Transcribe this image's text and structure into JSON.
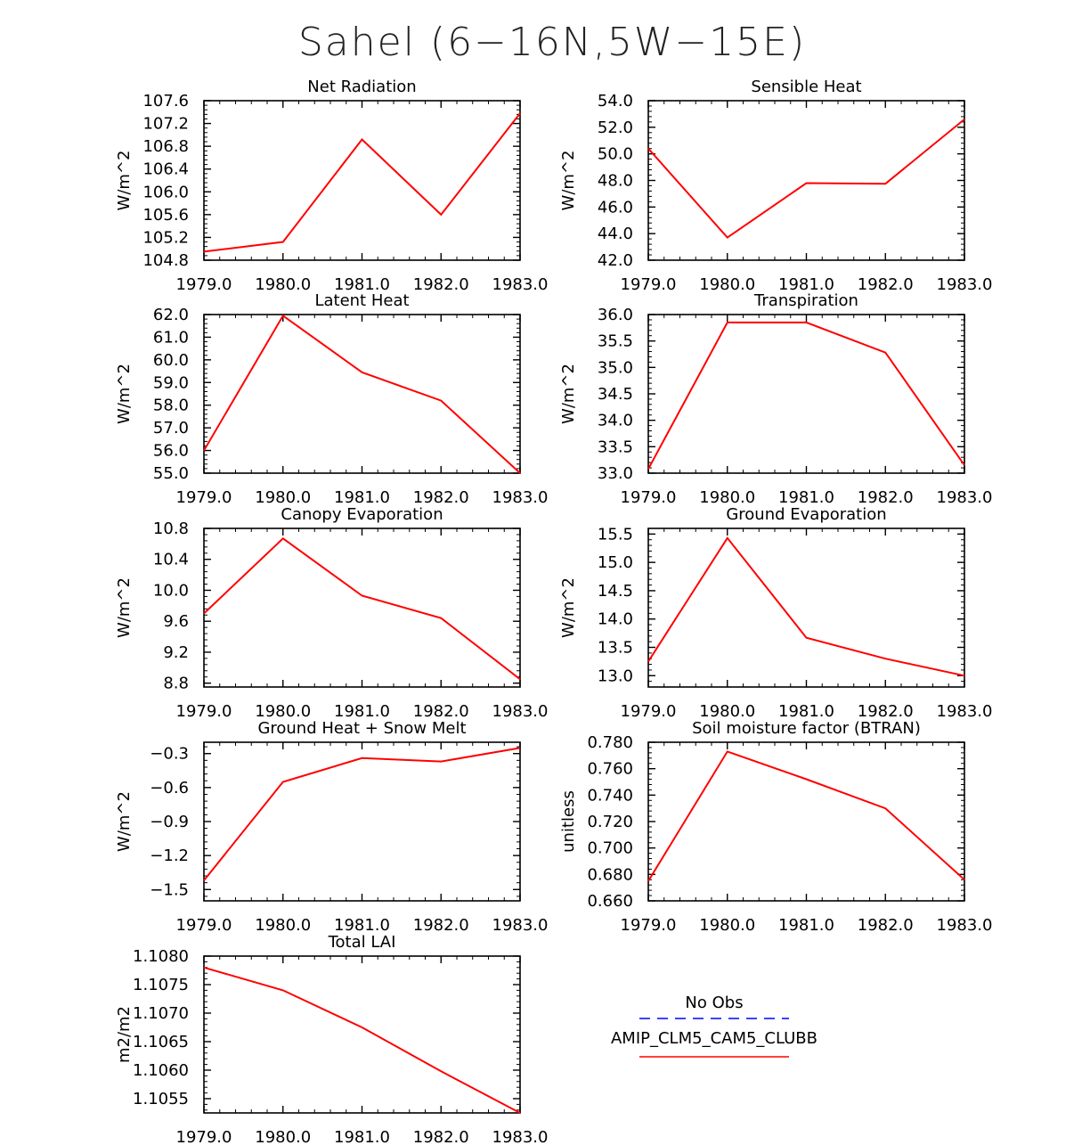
{
  "suptitle": "Sahel (6−16N,5W−15E)",
  "colors": {
    "model": "#ff0000",
    "obs": "#0000ff",
    "axis": "#000000"
  },
  "legend": {
    "obs_label": "No Obs",
    "model_label": "AMIP_CLM5_CAM5_CLUBB"
  },
  "chart_data": [
    {
      "type": "line",
      "title": "Net Radiation",
      "ylabel": "W/m^2",
      "x": [
        1979,
        1980,
        1981,
        1982,
        1983
      ],
      "xticks": [
        "1979.0",
        "1980.0",
        "1981.0",
        "1982.0",
        "1983.0"
      ],
      "ylim": [
        104.8,
        107.6
      ],
      "yticks": [
        "104.8",
        "105.2",
        "105.6",
        "106.0",
        "106.4",
        "106.8",
        "107.2",
        "107.6"
      ],
      "series": [
        {
          "name": "AMIP_CLM5_CAM5_CLUBB",
          "values": [
            104.95,
            105.12,
            106.92,
            105.6,
            107.38
          ]
        }
      ]
    },
    {
      "type": "line",
      "title": "Sensible Heat",
      "ylabel": "W/m^2",
      "x": [
        1979,
        1980,
        1981,
        1982,
        1983
      ],
      "xticks": [
        "1979.0",
        "1980.0",
        "1981.0",
        "1982.0",
        "1983.0"
      ],
      "ylim": [
        42.0,
        54.0
      ],
      "yticks": [
        "42.0",
        "44.0",
        "46.0",
        "48.0",
        "50.0",
        "52.0",
        "54.0"
      ],
      "series": [
        {
          "name": "AMIP_CLM5_CAM5_CLUBB",
          "values": [
            50.4,
            43.7,
            47.8,
            47.75,
            52.6
          ]
        }
      ]
    },
    {
      "type": "line",
      "title": "Latent Heat",
      "ylabel": "W/m^2",
      "x": [
        1979,
        1980,
        1981,
        1982,
        1983
      ],
      "xticks": [
        "1979.0",
        "1980.0",
        "1981.0",
        "1982.0",
        "1983.0"
      ],
      "ylim": [
        55.0,
        62.0
      ],
      "yticks": [
        "55.0",
        "56.0",
        "57.0",
        "58.0",
        "59.0",
        "60.0",
        "61.0",
        "62.0"
      ],
      "series": [
        {
          "name": "AMIP_CLM5_CAM5_CLUBB",
          "values": [
            56.0,
            61.95,
            59.45,
            58.2,
            55.0
          ]
        }
      ]
    },
    {
      "type": "line",
      "title": "Transpiration",
      "ylabel": "W/m^2",
      "x": [
        1979,
        1980,
        1981,
        1982,
        1983
      ],
      "xticks": [
        "1979.0",
        "1980.0",
        "1981.0",
        "1982.0",
        "1983.0"
      ],
      "ylim": [
        33.0,
        36.0
      ],
      "yticks": [
        "33.0",
        "33.5",
        "34.0",
        "34.5",
        "35.0",
        "35.5",
        "36.0"
      ],
      "series": [
        {
          "name": "AMIP_CLM5_CAM5_CLUBB",
          "values": [
            33.08,
            35.85,
            35.85,
            35.28,
            33.15
          ]
        }
      ]
    },
    {
      "type": "line",
      "title": "Canopy Evaporation",
      "ylabel": "W/m^2",
      "x": [
        1979,
        1980,
        1981,
        1982,
        1983
      ],
      "xticks": [
        "1979.0",
        "1980.0",
        "1981.0",
        "1982.0",
        "1983.0"
      ],
      "ylim": [
        8.75,
        10.8
      ],
      "yticks": [
        "8.8",
        "9.2",
        "9.6",
        "10.0",
        "10.4",
        "10.8"
      ],
      "ytick_values": [
        8.8,
        9.2,
        9.6,
        10.0,
        10.4,
        10.8
      ],
      "series": [
        {
          "name": "AMIP_CLM5_CAM5_CLUBB",
          "values": [
            9.7,
            10.67,
            9.93,
            9.64,
            8.85
          ]
        }
      ]
    },
    {
      "type": "line",
      "title": "Ground Evaporation",
      "ylabel": "W/m^2",
      "x": [
        1979,
        1980,
        1981,
        1982,
        1983
      ],
      "xticks": [
        "1979.0",
        "1980.0",
        "1981.0",
        "1982.0",
        "1983.0"
      ],
      "ylim": [
        12.8,
        15.6
      ],
      "yticks": [
        "13.0",
        "13.5",
        "14.0",
        "14.5",
        "15.0",
        "15.5"
      ],
      "ytick_values": [
        13.0,
        13.5,
        14.0,
        14.5,
        15.0,
        15.5
      ],
      "series": [
        {
          "name": "AMIP_CLM5_CAM5_CLUBB",
          "values": [
            13.25,
            15.43,
            13.67,
            13.3,
            13.0
          ]
        }
      ]
    },
    {
      "type": "line",
      "title": "Ground Heat + Snow Melt",
      "ylabel": "W/m^2",
      "x": [
        1979,
        1980,
        1981,
        1982,
        1983
      ],
      "xticks": [
        "1979.0",
        "1980.0",
        "1981.0",
        "1982.0",
        "1983.0"
      ],
      "ylim": [
        -1.6,
        -0.2
      ],
      "yticks": [
        "−1.5",
        "−1.2",
        "−0.9",
        "−0.6",
        "−0.3"
      ],
      "ytick_values": [
        -1.5,
        -1.2,
        -0.9,
        -0.6,
        -0.3
      ],
      "series": [
        {
          "name": "AMIP_CLM5_CAM5_CLUBB",
          "values": [
            -1.42,
            -0.55,
            -0.34,
            -0.37,
            -0.25
          ]
        }
      ]
    },
    {
      "type": "line",
      "title": "Soil moisture factor (BTRAN)",
      "ylabel": "unitless",
      "x": [
        1979,
        1980,
        1981,
        1982,
        1983
      ],
      "xticks": [
        "1979.0",
        "1980.0",
        "1981.0",
        "1982.0",
        "1983.0"
      ],
      "ylim": [
        0.66,
        0.78
      ],
      "yticks": [
        "0.660",
        "0.680",
        "0.700",
        "0.720",
        "0.740",
        "0.760",
        "0.780"
      ],
      "series": [
        {
          "name": "AMIP_CLM5_CAM5_CLUBB",
          "values": [
            0.675,
            0.773,
            0.752,
            0.73,
            0.676
          ]
        }
      ]
    },
    {
      "type": "line",
      "title": "Total LAI",
      "ylabel": "m2/m2",
      "x": [
        1979,
        1980,
        1981,
        1982,
        1983
      ],
      "xticks": [
        "1979.0",
        "1980.0",
        "1981.0",
        "1982.0",
        "1983.0"
      ],
      "ylim": [
        1.10525,
        1.108
      ],
      "yticks": [
        "1.1055",
        "1.1060",
        "1.1065",
        "1.1070",
        "1.1075",
        "1.1080"
      ],
      "ytick_values": [
        1.1055,
        1.106,
        1.1065,
        1.107,
        1.1075,
        1.108
      ],
      "series": [
        {
          "name": "AMIP_CLM5_CAM5_CLUBB",
          "values": [
            1.1078,
            1.1074,
            1.10675,
            1.10598,
            1.10525
          ]
        }
      ]
    }
  ]
}
